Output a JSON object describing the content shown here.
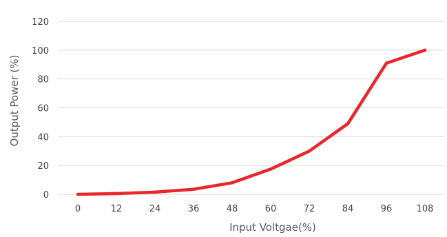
{
  "chart_data": {
    "type": "line",
    "xlabel": "Input Voltgae(%)",
    "ylabel": "Output Power (%)",
    "categories": [
      "0",
      "12",
      "24",
      "36",
      "48",
      "60",
      "72",
      "84",
      "96",
      "108"
    ],
    "ylim": [
      0,
      120
    ],
    "yticks": [
      "0",
      "20",
      "40",
      "60",
      "80",
      "100",
      "120"
    ],
    "grid": true,
    "legend": "none",
    "series": [
      {
        "values": [
          0,
          0.5,
          1.5,
          3.5,
          8,
          17.5,
          30,
          49,
          91,
          100
        ],
        "color": "#e8262b"
      }
    ]
  }
}
